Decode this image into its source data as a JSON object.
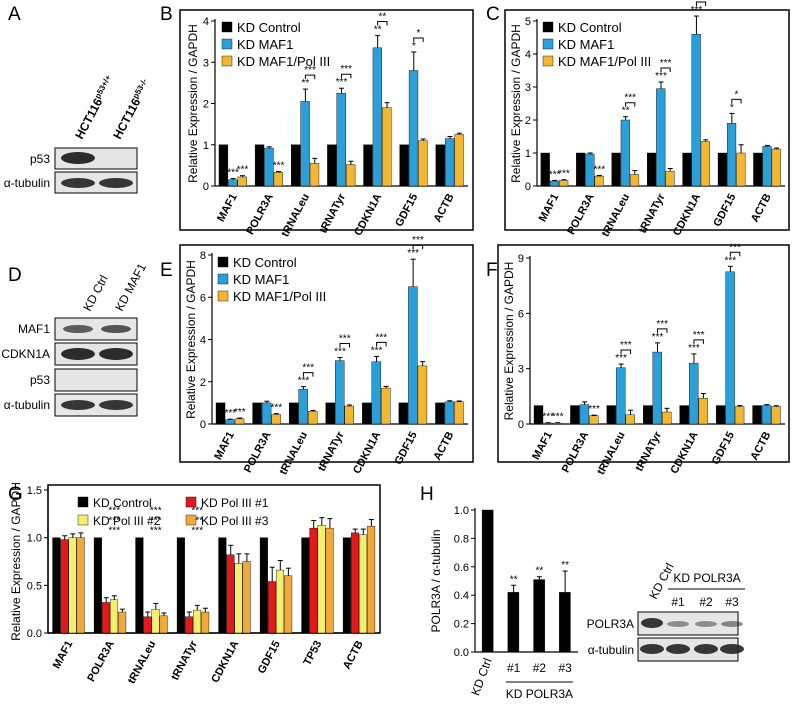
{
  "chart_data": [
    {
      "type": "bar",
      "panel": "B",
      "ylabel": "Relative Expression / GAPDH",
      "categories": [
        "MAF1",
        "POLR3A",
        "tRNALeu",
        "tRNATyr",
        "CDKN1A",
        "GDF15",
        "ACTB"
      ],
      "ylim": [
        0,
        4
      ],
      "yticks": [
        0,
        1,
        2,
        3,
        4
      ],
      "series": [
        {
          "name": "KD Control",
          "color": "#000000",
          "values": [
            1,
            1,
            1,
            1,
            1,
            1,
            1
          ]
        },
        {
          "name": "KD MAF1",
          "color": "#2b9fd9",
          "values": [
            0.15,
            0.92,
            2.05,
            2.25,
            3.35,
            2.8,
            1.15
          ],
          "errors": [
            0.03,
            0.03,
            0.3,
            0.12,
            0.3,
            0.45,
            0.05
          ],
          "stars": [
            "***",
            null,
            "**",
            "***",
            "**",
            "*",
            null
          ]
        },
        {
          "name": "KD MAF1/Pol III",
          "color": "#f2b632",
          "values": [
            0.22,
            0.33,
            0.55,
            0.52,
            1.9,
            1.1,
            1.25
          ],
          "errors": [
            0.03,
            0.02,
            0.12,
            0.08,
            0.12,
            0.04,
            0.03
          ],
          "stars": [
            "***",
            "***",
            null,
            null,
            null,
            null,
            null
          ]
        }
      ],
      "bracket_stars": [
        null,
        null,
        "***",
        "***",
        "**",
        "*",
        null
      ]
    },
    {
      "type": "bar",
      "panel": "C",
      "ylabel": "Relative Expression / GAPDH",
      "categories": [
        "MAF1",
        "POLR3A",
        "tRNALeu",
        "tRNATyr",
        "CDKN1A",
        "GDF15",
        "ACTB"
      ],
      "ylim": [
        0,
        5
      ],
      "yticks": [
        0,
        1,
        2,
        3,
        4,
        5
      ],
      "series": [
        {
          "name": "KD Control",
          "color": "#000000",
          "values": [
            1,
            1,
            1,
            1,
            1,
            1,
            1
          ]
        },
        {
          "name": "KD MAF1",
          "color": "#2b9fd9",
          "values": [
            0.15,
            0.97,
            2.0,
            2.95,
            4.6,
            1.9,
            1.2
          ],
          "errors": [
            0.02,
            0.03,
            0.1,
            0.2,
            0.55,
            0.3,
            0.03
          ],
          "stars": [
            "***",
            null,
            "**",
            "***",
            "***",
            "*",
            null
          ]
        },
        {
          "name": "KD MAF1/Pol III",
          "color": "#f2b632",
          "values": [
            0.17,
            0.3,
            0.35,
            0.45,
            1.35,
            1.0,
            1.12
          ],
          "errors": [
            0.02,
            0.02,
            0.12,
            0.08,
            0.05,
            0.25,
            0.03
          ],
          "stars": [
            "***",
            "***",
            null,
            null,
            null,
            null,
            null
          ]
        }
      ],
      "bracket_stars": [
        null,
        null,
        "***",
        "***",
        "***",
        "*",
        null
      ]
    },
    {
      "type": "bar",
      "panel": "E",
      "ylabel": "Relative Expression / GAPDH",
      "categories": [
        "MAF1",
        "POLR3A",
        "tRNALeu",
        "tRNATyr",
        "CDKN1A",
        "GDF15",
        "ACTB"
      ],
      "ylim": [
        0,
        8
      ],
      "yticks": [
        0,
        2,
        4,
        6,
        8
      ],
      "series": [
        {
          "name": "KD Control",
          "color": "#000000",
          "values": [
            1,
            1,
            1,
            1,
            1,
            1,
            1
          ]
        },
        {
          "name": "KD MAF1",
          "color": "#2b9fd9",
          "values": [
            0.2,
            1.0,
            1.65,
            3.0,
            2.95,
            6.5,
            1.05
          ],
          "errors": [
            0.03,
            0.08,
            0.12,
            0.15,
            0.25,
            1.3,
            0.05
          ],
          "stars": [
            "***",
            null,
            "***",
            "***",
            "***",
            "***",
            null
          ]
        },
        {
          "name": "KD MAF1/Pol III",
          "color": "#f2b632",
          "values": [
            0.25,
            0.45,
            0.6,
            0.85,
            1.7,
            2.75,
            1.05
          ],
          "errors": [
            0.03,
            0.04,
            0.04,
            0.05,
            0.08,
            0.2,
            0.04
          ],
          "stars": [
            "***",
            "***",
            null,
            null,
            null,
            null,
            null
          ]
        }
      ],
      "bracket_stars": [
        null,
        null,
        "***",
        "***",
        "***",
        "***",
        null
      ]
    },
    {
      "type": "bar",
      "panel": "F",
      "ylabel": "Relative Expression / GAPDH",
      "categories": [
        "MAF1",
        "POLR3A",
        "tRNALeu",
        "tRNATyr",
        "CDKN1A",
        "GDF15",
        "ACTB"
      ],
      "ylim": [
        0,
        9
      ],
      "yticks": [
        0,
        3,
        6,
        9
      ],
      "series": [
        {
          "color": "#000000",
          "values": [
            1,
            1,
            1,
            1,
            1,
            1,
            1
          ]
        },
        {
          "color": "#2b9fd9",
          "values": [
            0.05,
            1.05,
            3.05,
            3.9,
            3.3,
            8.25,
            1.0
          ],
          "errors": [
            0.02,
            0.15,
            0.2,
            0.5,
            0.5,
            0.3,
            0.05
          ],
          "stars": [
            "***",
            null,
            "***",
            "***",
            "***",
            "***",
            null
          ]
        },
        {
          "color": "#f2b632",
          "values": [
            0.05,
            0.45,
            0.5,
            0.65,
            1.4,
            0.95,
            0.95
          ],
          "errors": [
            0.02,
            0.03,
            0.25,
            0.2,
            0.25,
            0.05,
            0.04
          ],
          "stars": [
            "***",
            "***",
            null,
            null,
            null,
            null,
            null
          ]
        }
      ],
      "bracket_stars": [
        null,
        null,
        "***",
        "***",
        "***",
        "***",
        null
      ]
    },
    {
      "type": "bar",
      "panel": "G",
      "ylabel": "Relative Expression / GAPDH",
      "categories": [
        "MAF1",
        "POLR3A",
        "tRNALeu",
        "tRNATyr",
        "CDKN1A",
        "GDF15",
        "TP53",
        "ACTB"
      ],
      "ylim": [
        0,
        1.5
      ],
      "yticks": [
        {
          "value": 0,
          "label": "0.0"
        },
        {
          "value": 0.5,
          "label": "0.5"
        },
        {
          "value": 1,
          "label": "1.0"
        },
        1.5
      ],
      "series": [
        {
          "name": "KD Control",
          "color": "#000000",
          "values": [
            1,
            1,
            1,
            1,
            1,
            1,
            1,
            1
          ]
        },
        {
          "name": "KD Pol III #1",
          "color": "#e3191c",
          "values": [
            0.98,
            0.32,
            0.17,
            0.17,
            0.82,
            0.54,
            1.1,
            1.05
          ],
          "errors": [
            0.04,
            0.05,
            0.05,
            0.05,
            0.1,
            0.15,
            0.08,
            0.04
          ],
          "stars": [
            null,
            "***",
            "***",
            "***",
            null,
            null,
            null,
            null
          ]
        },
        {
          "name": "KD Pol III #2",
          "color": "#f4ef6e",
          "values": [
            1.0,
            0.35,
            0.25,
            0.24,
            0.73,
            0.66,
            1.13,
            1.03
          ],
          "errors": [
            0.04,
            0.04,
            0.06,
            0.05,
            0.1,
            0.1,
            0.08,
            0.06
          ],
          "stars": [
            null,
            "***",
            "***",
            "***",
            null,
            null,
            null,
            null
          ]
        },
        {
          "name": "KD Pol III #3",
          "color": "#f2a93b",
          "values": [
            1.0,
            0.22,
            0.18,
            0.22,
            0.75,
            0.6,
            1.1,
            1.12
          ],
          "errors": [
            0.05,
            0.03,
            0.03,
            0.04,
            0.08,
            0.08,
            0.1,
            0.07
          ],
          "stars": [
            null,
            "***",
            "***",
            "***",
            null,
            null,
            null,
            null
          ]
        }
      ]
    },
    {
      "type": "bar",
      "panel": "H",
      "ylabel": "POLR3A / α-tubulin",
      "categories": [
        "KD Ctrl",
        "#1",
        "#2",
        "#3"
      ],
      "group_label": "KD POLR3A",
      "ylim": [
        0,
        1.0
      ],
      "yticks": [
        {
          "value": 0,
          "label": "0.0"
        },
        0.2,
        0.4,
        0.6,
        0.8,
        {
          "value": 1,
          "label": "1.0"
        }
      ],
      "series": [
        {
          "color": "#000000",
          "values": [
            1.0,
            0.42,
            0.51,
            0.42
          ],
          "errors": [
            null,
            0.05,
            0.02,
            0.15
          ],
          "stars": [
            null,
            "**",
            "**",
            "**"
          ]
        }
      ]
    }
  ],
  "blots": [
    {
      "panel": "A",
      "columns": [
        {
          "base": "HCT116",
          "sup": "p53+/+"
        },
        {
          "base": "HCT116",
          "sup": "p53-/-"
        }
      ],
      "rows": [
        "p53",
        "α-tubulin"
      ]
    },
    {
      "panel": "D",
      "columns": [
        "KD Ctrl",
        "KD MAF1"
      ],
      "rows": [
        "MAF1",
        "CDKN1A",
        "p53",
        "α-tubulin"
      ]
    },
    {
      "columns": [
        "KD Ctrl"
      ],
      "group": "KD POLR3A",
      "group_columns": [
        "#1",
        "#2",
        "#3"
      ],
      "rows": [
        "POLR3A",
        "α-tubulin"
      ]
    }
  ]
}
